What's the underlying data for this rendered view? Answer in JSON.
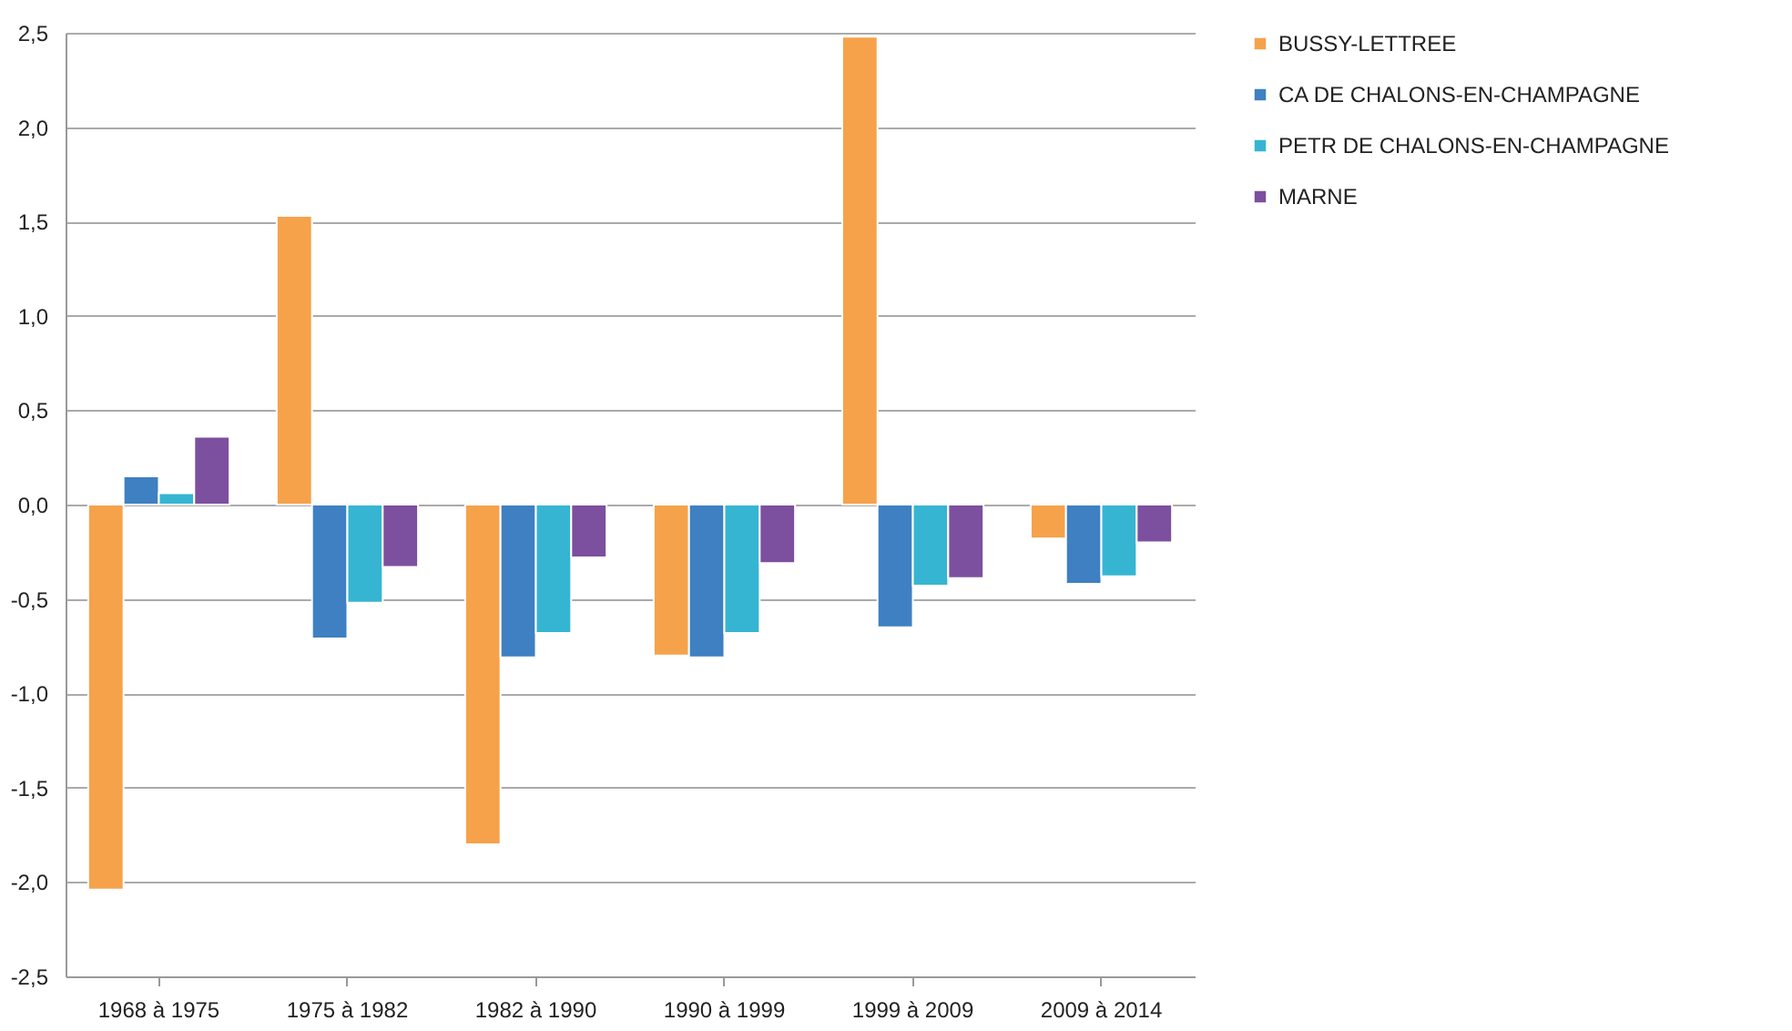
{
  "chart_data": {
    "type": "bar",
    "categories": [
      "1968 à 1975",
      "1975 à 1982",
      "1982 à 1990",
      "1990 à 1999",
      "1999 à 2009",
      "2009 à 2014"
    ],
    "series": [
      {
        "name": "BUSSY-LETTREE",
        "color": "#f5a24b",
        "values": [
          -2.04,
          1.53,
          -1.8,
          -0.8,
          2.48,
          -0.18
        ]
      },
      {
        "name": "CA DE CHALONS-EN-CHAMPAGNE",
        "color": "#3e80c2",
        "values": [
          0.15,
          -0.71,
          -0.81,
          -0.81,
          -0.65,
          -0.42
        ]
      },
      {
        "name": "PETR DE CHALONS-EN-CHAMPAGNE",
        "color": "#36b5d2",
        "values": [
          0.06,
          -0.52,
          -0.68,
          -0.68,
          -0.43,
          -0.38
        ]
      },
      {
        "name": "MARNE",
        "color": "#7d4f9f",
        "values": [
          0.36,
          -0.33,
          -0.28,
          -0.31,
          -0.39,
          -0.2
        ]
      }
    ],
    "ylim": [
      -2.5,
      2.5
    ],
    "yticks": [
      {
        "value": -2.5,
        "label": "-2,5"
      },
      {
        "value": -2,
        "label": "-2,0"
      },
      {
        "value": -1.5,
        "label": "-1,5"
      },
      {
        "value": -1,
        "label": "-1,0"
      },
      {
        "value": -0.5,
        "label": "-0,5"
      },
      {
        "value": 0,
        "label": "0,0"
      },
      {
        "value": 0.5,
        "label": "0,5"
      },
      {
        "value": 1,
        "label": "1,0"
      },
      {
        "value": 1.5,
        "label": "1,5"
      },
      {
        "value": 2,
        "label": "2,0"
      },
      {
        "value": 2.5,
        "label": "2,5"
      }
    ],
    "grid": "y",
    "legend": "right"
  }
}
